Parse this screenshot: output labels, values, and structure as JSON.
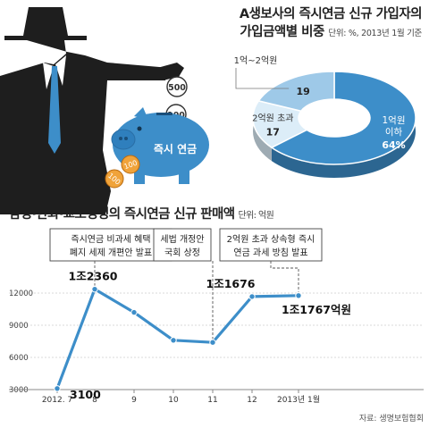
{
  "donut": {
    "title_line1": "A생보사의 즉시연금 신규 가입자의",
    "title_line2": "가입금액별 비중",
    "unit_note": "단위: %, 2013년 1월 기준"
  },
  "line": {
    "title": "삼성·한화·교보생명의 즉시연금 신규 판매액",
    "unit": "단위: 억원",
    "source": "자료: 생명보험협회"
  },
  "illustration": {
    "piggy_label": "즉시 연금",
    "coins": [
      "500",
      "100",
      "100",
      "100"
    ]
  },
  "chart_data": [
    {
      "type": "pie",
      "title": "A생보사의 즉시연금 신규 가입자의 가입금액별 비중",
      "unit": "%",
      "slices": [
        {
          "label": "1억원 이하",
          "label_line1": "1억원",
          "label_line2": "이하",
          "value": 64,
          "value_text": "64%",
          "color": "#3d8ec9"
        },
        {
          "label": "2억원 초과",
          "value": 17,
          "value_text": "17",
          "color": "#dcedf8"
        },
        {
          "label": "1억~2억원",
          "value": 19,
          "value_text": "19",
          "color": "#9ec9e8"
        }
      ]
    },
    {
      "type": "line",
      "title": "삼성·한화·교보생명의 즉시연금 신규 판매액",
      "ylabel": "억원",
      "x": [
        "2012. 7",
        "8",
        "9",
        "10",
        "11",
        "12",
        "2013년 1월"
      ],
      "series": [
        {
          "values": [
            3100,
            12360,
            10200,
            7600,
            7400,
            11676,
            11767
          ]
        }
      ],
      "ylim": [
        3000,
        13000
      ],
      "yticks": [
        3000,
        6000,
        9000,
        12000
      ],
      "point_labels": [
        {
          "index": 0,
          "text": "3100"
        },
        {
          "index": 1,
          "text": "1조2360"
        },
        {
          "index": 5,
          "text": "1조1676"
        },
        {
          "index": 6,
          "text": "1조1767억원"
        }
      ],
      "annotations": [
        {
          "index": 1,
          "line1": "즉시연금 비과세 혜택",
          "line2": "폐지 세제 개편안 발표"
        },
        {
          "index": 4,
          "line1": "세법 개정안",
          "line2": "국회 상정"
        },
        {
          "index": 6,
          "line1": "2억원 초과 상속형 즉시",
          "line2": "연금 과세 방침 발표"
        }
      ],
      "color": "#3d8ec9"
    }
  ]
}
